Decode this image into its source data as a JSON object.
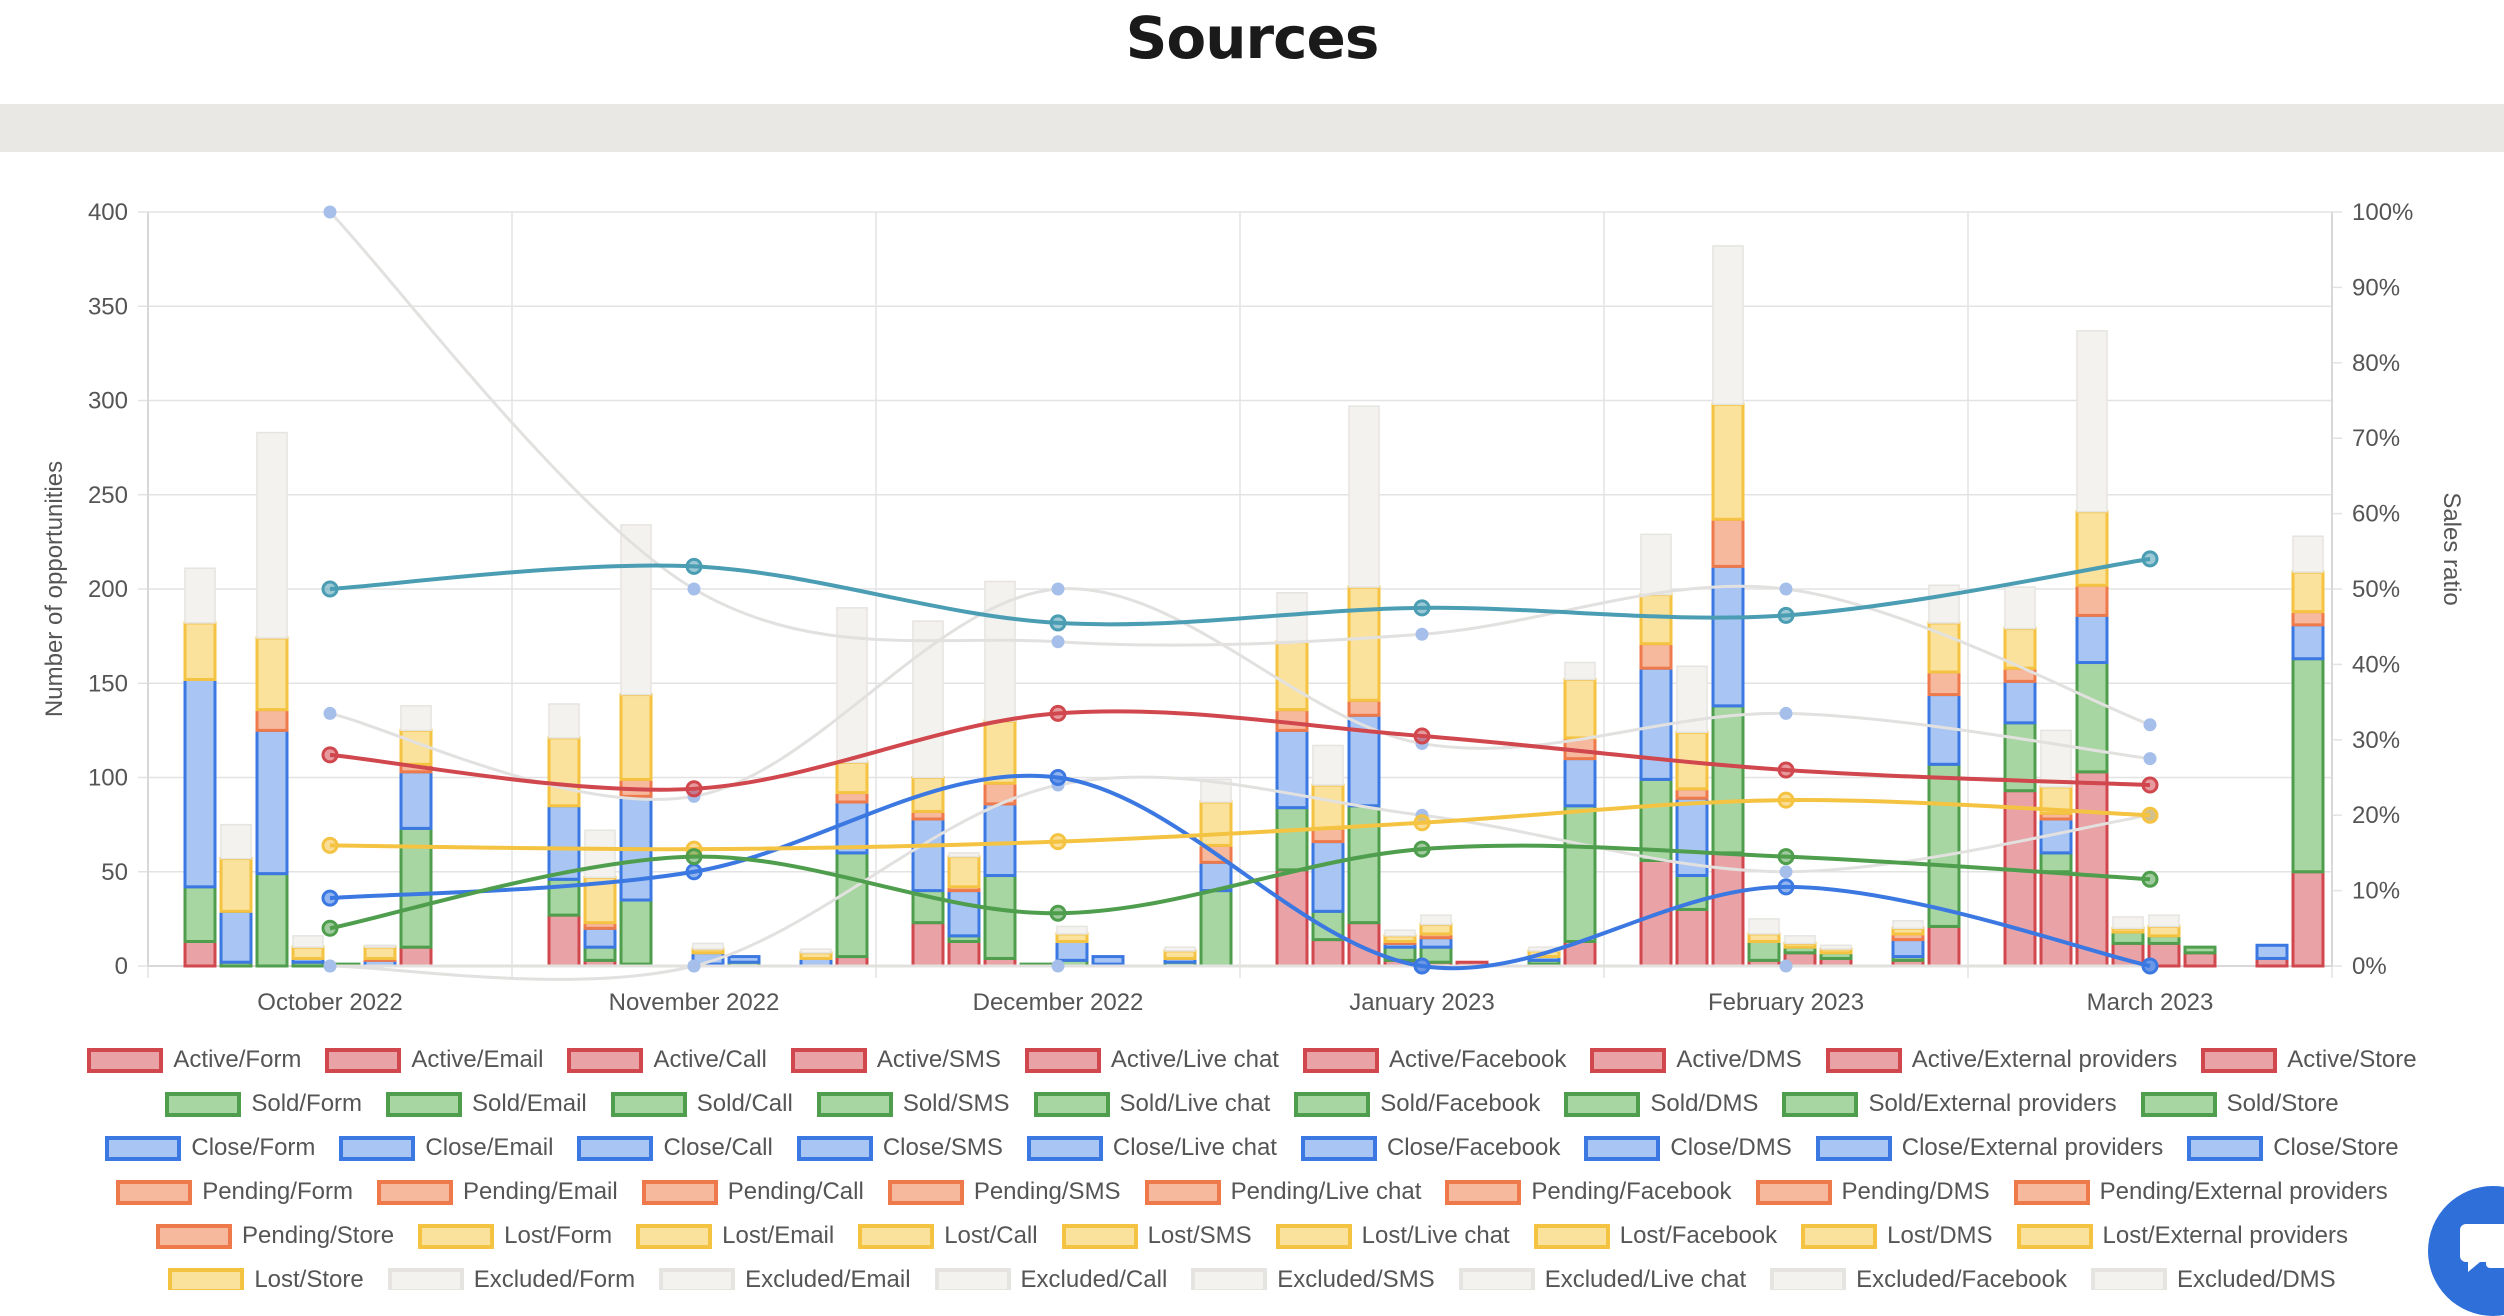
{
  "page": {
    "title": "Sources"
  },
  "colors": {
    "active": "#d1474e",
    "active_fill": "#e9a3a7",
    "sold": "#4f9e4d",
    "sold_fill": "#a8d6a2",
    "close": "#3b78e2",
    "close_fill": "#a8c5f3",
    "pending": "#ee7a4c",
    "pending_fill": "#f6b99e",
    "lost": "#f5c342",
    "lost_fill": "#fbe29c",
    "excluded": "#e6e4e0",
    "excluded_fill": "#f3f2ef",
    "teal_line": "#4a9db3"
  },
  "chart_data": {
    "type": "bar",
    "stacked": true,
    "categories": [
      "October 2022",
      "November 2022",
      "December 2022",
      "January 2023",
      "February 2023",
      "March 2023"
    ],
    "ylabel": "Number of opportunities",
    "y2label": "Sales ratio",
    "ylim": [
      0,
      400
    ],
    "yticks": [
      0,
      50,
      100,
      150,
      200,
      250,
      300,
      350,
      400
    ],
    "y2lim": [
      0,
      100
    ],
    "y2ticks": [
      "0%",
      "10%",
      "20%",
      "30%",
      "40%",
      "50%",
      "60%",
      "70%",
      "80%",
      "90%",
      "100%"
    ],
    "grid": true,
    "legend_position": "bottom",
    "bar_series_order": [
      "Active",
      "Sold",
      "Close",
      "Pending",
      "Lost",
      "Excluded"
    ],
    "bars": [
      {
        "month": "October 2022",
        "source": "Form",
        "values": [
          13,
          29,
          110,
          0,
          30,
          29
        ]
      },
      {
        "month": "October 2022",
        "source": "Email",
        "values": [
          0,
          2,
          27,
          0,
          28,
          18
        ]
      },
      {
        "month": "October 2022",
        "source": "Call",
        "values": [
          0,
          49,
          76,
          11,
          38,
          109
        ]
      },
      {
        "month": "October 2022",
        "source": "SMS",
        "values": [
          0,
          2,
          2,
          0,
          6,
          6
        ]
      },
      {
        "month": "October 2022",
        "source": "Live chat",
        "values": [
          0,
          1,
          0,
          0,
          0,
          0
        ]
      },
      {
        "month": "October 2022",
        "source": "Facebook",
        "values": [
          0,
          0,
          3,
          1,
          6,
          1
        ]
      },
      {
        "month": "October 2022",
        "source": "DMS",
        "values": [
          10,
          63,
          30,
          4,
          18,
          13
        ]
      },
      {
        "month": "November 2022",
        "source": "Form",
        "values": [
          27,
          19,
          39,
          0,
          36,
          18
        ]
      },
      {
        "month": "November 2022",
        "source": "Email",
        "values": [
          3,
          7,
          10,
          3,
          24,
          25
        ]
      },
      {
        "month": "November 2022",
        "source": "Call",
        "values": [
          1,
          34,
          55,
          9,
          45,
          90
        ]
      },
      {
        "month": "November 2022",
        "source": "Live chat",
        "values": [
          0,
          1,
          6,
          0,
          2,
          3
        ]
      },
      {
        "month": "November 2022",
        "source": "Facebook",
        "values": [
          0,
          2,
          3,
          0,
          0,
          0
        ]
      },
      {
        "month": "November 2022",
        "source": "External providers",
        "values": [
          0,
          0,
          4,
          0,
          3,
          2
        ]
      },
      {
        "month": "November 2022",
        "source": "Store",
        "values": [
          5,
          55,
          27,
          5,
          16,
          82
        ]
      },
      {
        "month": "December 2022",
        "source": "Form",
        "values": [
          23,
          17,
          38,
          4,
          18,
          83
        ]
      },
      {
        "month": "December 2022",
        "source": "Email",
        "values": [
          13,
          3,
          24,
          2,
          16,
          2
        ]
      },
      {
        "month": "December 2022",
        "source": "Call",
        "values": [
          4,
          44,
          38,
          11,
          33,
          74
        ]
      },
      {
        "month": "December 2022",
        "source": "SMS",
        "values": [
          0,
          1,
          0,
          0,
          0,
          0
        ]
      },
      {
        "month": "December 2022",
        "source": "Live chat",
        "values": [
          0,
          3,
          10,
          0,
          4,
          4
        ]
      },
      {
        "month": "December 2022",
        "source": "Facebook",
        "values": [
          0,
          1,
          4,
          0,
          0,
          0
        ]
      },
      {
        "month": "December 2022",
        "source": "External providers",
        "values": [
          0,
          2,
          2,
          0,
          4,
          2
        ]
      },
      {
        "month": "December 2022",
        "source": "Store",
        "values": [
          0,
          40,
          15,
          9,
          23,
          12
        ]
      },
      {
        "month": "January 2023",
        "source": "Form",
        "values": [
          51,
          33,
          41,
          11,
          36,
          26
        ]
      },
      {
        "month": "January 2023",
        "source": "Email",
        "values": [
          14,
          15,
          37,
          7,
          23,
          21
        ]
      },
      {
        "month": "January 2023",
        "source": "Call",
        "values": [
          23,
          62,
          48,
          8,
          60,
          96
        ]
      },
      {
        "month": "January 2023",
        "source": "SMS",
        "values": [
          3,
          7,
          2,
          1,
          3,
          3
        ]
      },
      {
        "month": "January 2023",
        "source": "Live chat",
        "values": [
          2,
          8,
          5,
          2,
          5,
          5
        ]
      },
      {
        "month": "January 2023",
        "source": "Facebook",
        "values": [
          2,
          0,
          0,
          0,
          0,
          0
        ]
      },
      {
        "month": "January 2023",
        "source": "External providers",
        "values": [
          1,
          2,
          2,
          0,
          3,
          2
        ]
      },
      {
        "month": "January 2023",
        "source": "Store",
        "values": [
          13,
          72,
          25,
          11,
          31,
          9
        ]
      },
      {
        "month": "February 2023",
        "source": "Form",
        "values": [
          56,
          43,
          59,
          13,
          26,
          32
        ]
      },
      {
        "month": "February 2023",
        "source": "Email",
        "values": [
          30,
          18,
          41,
          5,
          30,
          35
        ]
      },
      {
        "month": "February 2023",
        "source": "Call",
        "values": [
          60,
          78,
          74,
          25,
          61,
          84
        ]
      },
      {
        "month": "February 2023",
        "source": "SMS",
        "values": [
          3,
          10,
          0,
          0,
          4,
          8
        ]
      },
      {
        "month": "February 2023",
        "source": "Live chat",
        "values": [
          7,
          3,
          0,
          0,
          2,
          4
        ]
      },
      {
        "month": "February 2023",
        "source": "Facebook",
        "values": [
          4,
          3,
          0,
          0,
          2,
          2
        ]
      },
      {
        "month": "February 2023",
        "source": "External providers",
        "values": [
          3,
          2,
          9,
          3,
          3,
          4
        ]
      },
      {
        "month": "February 2023",
        "source": "Store",
        "values": [
          21,
          86,
          37,
          12,
          26,
          20
        ]
      },
      {
        "month": "March 2023",
        "source": "Form",
        "values": [
          93,
          36,
          22,
          7,
          21,
          22
        ]
      },
      {
        "month": "March 2023",
        "source": "Email",
        "values": [
          50,
          10,
          18,
          3,
          14,
          30
        ]
      },
      {
        "month": "March 2023",
        "source": "Call",
        "values": [
          103,
          58,
          25,
          16,
          39,
          96
        ]
      },
      {
        "month": "March 2023",
        "source": "SMS",
        "values": [
          12,
          6,
          0,
          0,
          2,
          6
        ]
      },
      {
        "month": "March 2023",
        "source": "Live chat",
        "values": [
          12,
          4,
          0,
          0,
          5,
          6
        ]
      },
      {
        "month": "March 2023",
        "source": "Facebook",
        "values": [
          7,
          3,
          0,
          0,
          0,
          0
        ]
      },
      {
        "month": "March 2023",
        "source": "External providers",
        "values": [
          4,
          0,
          7,
          0,
          0,
          0
        ]
      },
      {
        "month": "March 2023",
        "source": "Store",
        "values": [
          50,
          113,
          18,
          7,
          21,
          19
        ]
      }
    ],
    "lines": [
      {
        "color_key": "teal_line",
        "values": [
          50,
          53,
          45.5,
          47.5,
          46.5,
          54
        ]
      },
      {
        "color_key": "active",
        "values": [
          28,
          23.5,
          33.5,
          30.5,
          26,
          24
        ]
      },
      {
        "color_key": "close",
        "values": [
          9,
          12.5,
          25,
          0,
          10.5,
          0
        ]
      },
      {
        "color_key": "lost",
        "values": [
          16,
          15.5,
          16.5,
          19,
          22,
          20
        ]
      },
      {
        "color_key": "sold",
        "values": [
          5,
          14.5,
          7,
          15.5,
          14.5,
          11.5
        ]
      }
    ],
    "excluded_lines": [
      {
        "values": [
          100,
          50,
          43,
          44,
          50,
          32
        ]
      },
      {
        "values": [
          33.5,
          22.5,
          50,
          29.5,
          33.5,
          27.5
        ]
      },
      {
        "values": [
          0,
          0,
          24,
          20,
          12.5,
          20
        ]
      },
      {
        "values": [
          0,
          0,
          0,
          0,
          0,
          0
        ]
      }
    ]
  },
  "legend": {
    "rows": [
      [
        {
          "label": "Active/Form",
          "group": "active"
        },
        {
          "label": "Active/Email",
          "group": "active"
        },
        {
          "label": "Active/Call",
          "group": "active"
        },
        {
          "label": "Active/SMS",
          "group": "active"
        },
        {
          "label": "Active/Live chat",
          "group": "active"
        },
        {
          "label": "Active/Facebook",
          "group": "active"
        },
        {
          "label": "Active/DMS",
          "group": "active"
        },
        {
          "label": "Active/External providers",
          "group": "active"
        },
        {
          "label": "Active/Store",
          "group": "active"
        }
      ],
      [
        {
          "label": "Sold/Form",
          "group": "sold"
        },
        {
          "label": "Sold/Email",
          "group": "sold"
        },
        {
          "label": "Sold/Call",
          "group": "sold"
        },
        {
          "label": "Sold/SMS",
          "group": "sold"
        },
        {
          "label": "Sold/Live chat",
          "group": "sold"
        },
        {
          "label": "Sold/Facebook",
          "group": "sold"
        },
        {
          "label": "Sold/DMS",
          "group": "sold"
        },
        {
          "label": "Sold/External providers",
          "group": "sold"
        },
        {
          "label": "Sold/Store",
          "group": "sold"
        }
      ],
      [
        {
          "label": "Close/Form",
          "group": "close"
        },
        {
          "label": "Close/Email",
          "group": "close"
        },
        {
          "label": "Close/Call",
          "group": "close"
        },
        {
          "label": "Close/SMS",
          "group": "close"
        },
        {
          "label": "Close/Live chat",
          "group": "close"
        },
        {
          "label": "Close/Facebook",
          "group": "close"
        },
        {
          "label": "Close/DMS",
          "group": "close"
        },
        {
          "label": "Close/External providers",
          "group": "close"
        },
        {
          "label": "Close/Store",
          "group": "close"
        }
      ],
      [
        {
          "label": "Pending/Form",
          "group": "pending"
        },
        {
          "label": "Pending/Email",
          "group": "pending"
        },
        {
          "label": "Pending/Call",
          "group": "pending"
        },
        {
          "label": "Pending/SMS",
          "group": "pending"
        },
        {
          "label": "Pending/Live chat",
          "group": "pending"
        },
        {
          "label": "Pending/Facebook",
          "group": "pending"
        },
        {
          "label": "Pending/DMS",
          "group": "pending"
        },
        {
          "label": "Pending/External providers",
          "group": "pending"
        }
      ],
      [
        {
          "label": "Pending/Store",
          "group": "pending"
        },
        {
          "label": "Lost/Form",
          "group": "lost"
        },
        {
          "label": "Lost/Email",
          "group": "lost"
        },
        {
          "label": "Lost/Call",
          "group": "lost"
        },
        {
          "label": "Lost/SMS",
          "group": "lost"
        },
        {
          "label": "Lost/Live chat",
          "group": "lost"
        },
        {
          "label": "Lost/Facebook",
          "group": "lost"
        },
        {
          "label": "Lost/DMS",
          "group": "lost"
        },
        {
          "label": "Lost/External providers",
          "group": "lost"
        }
      ],
      [
        {
          "label": "Lost/Store",
          "group": "lost"
        },
        {
          "label": "Excluded/Form",
          "group": "excluded"
        },
        {
          "label": "Excluded/Email",
          "group": "excluded"
        },
        {
          "label": "Excluded/Call",
          "group": "excluded"
        },
        {
          "label": "Excluded/SMS",
          "group": "excluded"
        },
        {
          "label": "Excluded/Live chat",
          "group": "excluded"
        },
        {
          "label": "Excluded/Facebook",
          "group": "excluded"
        },
        {
          "label": "Excluded/DMS",
          "group": "excluded"
        }
      ]
    ]
  },
  "chat": {
    "icon": "chat-bubble-icon"
  }
}
